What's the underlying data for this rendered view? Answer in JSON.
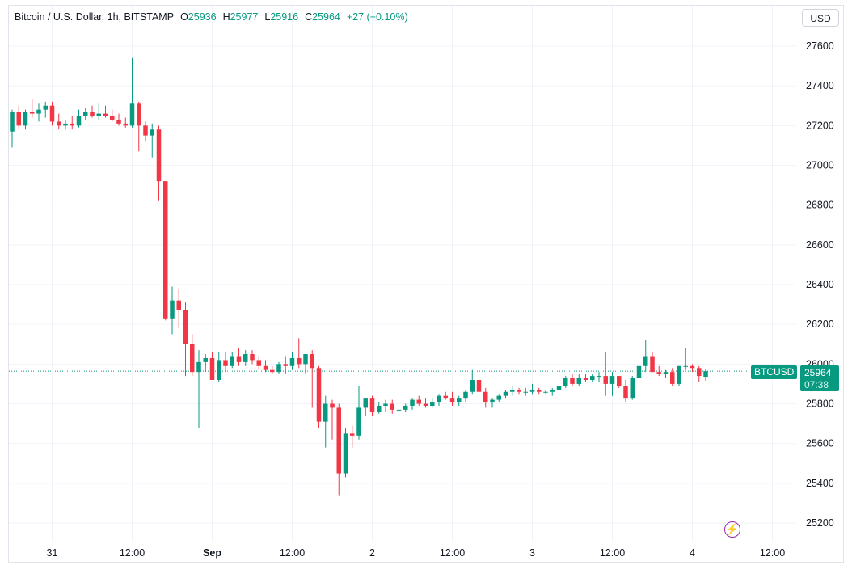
{
  "header": {
    "symbol_title": "Bitcoin / U.S. Dollar, 1h, BITSTAMP",
    "o_label": "O",
    "o_value": "25936",
    "h_label": "H",
    "h_value": "25977",
    "l_label": "L",
    "l_value": "25916",
    "c_label": "C",
    "c_value": "25964",
    "change": "+27 (+0.10%)"
  },
  "currency_button": "USD",
  "symbol_label": "BTCUSD",
  "price_label": {
    "price": "25964",
    "countdown": "07:38"
  },
  "flash_icon": "lightning-icon",
  "colors": {
    "up": "#089981",
    "down": "#f23645",
    "grid": "#f0f3fa",
    "text": "#131722"
  },
  "chart_data": {
    "type": "candlestick",
    "symbol": "BTCUSD",
    "interval": "1h",
    "exchange": "BITSTAMP",
    "y_ticks": [
      25200,
      25400,
      25600,
      25800,
      26000,
      26200,
      26400,
      26600,
      26800,
      27000,
      27200,
      27400,
      27600
    ],
    "ylim": [
      25150,
      27670
    ],
    "x_ticks": [
      {
        "label": "31",
        "index": 6,
        "bold": false
      },
      {
        "label": "12:00",
        "index": 18,
        "bold": false
      },
      {
        "label": "Sep",
        "index": 30,
        "bold": true
      },
      {
        "label": "12:00",
        "index": 42,
        "bold": false
      },
      {
        "label": "2",
        "index": 54,
        "bold": false
      },
      {
        "label": "12:00",
        "index": 66,
        "bold": false
      },
      {
        "label": "3",
        "index": 78,
        "bold": false
      },
      {
        "label": "12:00",
        "index": 90,
        "bold": false
      },
      {
        "label": "4",
        "index": 102,
        "bold": false
      },
      {
        "label": "12:00",
        "index": 114,
        "bold": false
      }
    ],
    "last_price": 25964,
    "candles": [
      [
        27170,
        27280,
        27090,
        27270
      ],
      [
        27270,
        27300,
        27180,
        27200
      ],
      [
        27200,
        27280,
        27180,
        27270
      ],
      [
        27270,
        27330,
        27240,
        27260
      ],
      [
        27260,
        27310,
        27220,
        27280
      ],
      [
        27280,
        27320,
        27240,
        27300
      ],
      [
        27300,
        27320,
        27200,
        27220
      ],
      [
        27220,
        27260,
        27180,
        27200
      ],
      [
        27200,
        27230,
        27180,
        27210
      ],
      [
        27210,
        27250,
        27180,
        27200
      ],
      [
        27200,
        27280,
        27190,
        27250
      ],
      [
        27250,
        27290,
        27230,
        27270
      ],
      [
        27270,
        27300,
        27240,
        27250
      ],
      [
        27250,
        27310,
        27230,
        27260
      ],
      [
        27260,
        27300,
        27240,
        27250
      ],
      [
        27250,
        27280,
        27220,
        27230
      ],
      [
        27230,
        27260,
        27200,
        27210
      ],
      [
        27210,
        27240,
        27190,
        27200
      ],
      [
        27200,
        27540,
        27190,
        27310
      ],
      [
        27310,
        27320,
        27070,
        27200
      ],
      [
        27200,
        27220,
        27120,
        27150
      ],
      [
        27150,
        27210,
        27040,
        27180
      ],
      [
        27180,
        27200,
        26820,
        26920
      ],
      [
        26920,
        26920,
        26220,
        26230
      ],
      [
        26230,
        26390,
        26150,
        26320
      ],
      [
        26320,
        26380,
        26180,
        26270
      ],
      [
        26270,
        26310,
        25940,
        26100
      ],
      [
        26100,
        26150,
        25940,
        25960
      ],
      [
        25960,
        26070,
        25680,
        26010
      ],
      [
        26010,
        26050,
        25960,
        26030
      ],
      [
        26030,
        26060,
        25920,
        25920
      ],
      [
        25920,
        26060,
        25910,
        26020
      ],
      [
        26020,
        26060,
        25960,
        25990
      ],
      [
        25990,
        26060,
        25980,
        26040
      ],
      [
        26040,
        26080,
        25990,
        26010
      ],
      [
        26010,
        26070,
        25990,
        26050
      ],
      [
        26050,
        26070,
        26000,
        26020
      ],
      [
        26020,
        26040,
        25970,
        25990
      ],
      [
        25990,
        26020,
        25960,
        25970
      ],
      [
        25970,
        25990,
        25950,
        25960
      ],
      [
        25960,
        26010,
        25950,
        26000
      ],
      [
        26000,
        26040,
        25950,
        25990
      ],
      [
        25990,
        26060,
        25970,
        26030
      ],
      [
        26030,
        26130,
        25980,
        26000
      ],
      [
        26000,
        26050,
        25950,
        26050
      ],
      [
        26050,
        26070,
        25780,
        25980
      ],
      [
        25980,
        25990,
        25680,
        25710
      ],
      [
        25710,
        25840,
        25580,
        25800
      ],
      [
        25800,
        25820,
        25620,
        25780
      ],
      [
        25780,
        25800,
        25340,
        25450
      ],
      [
        25450,
        25680,
        25430,
        25650
      ],
      [
        25650,
        25690,
        25580,
        25640
      ],
      [
        25640,
        25890,
        25620,
        25780
      ],
      [
        25780,
        25830,
        25740,
        25830
      ],
      [
        25830,
        25840,
        25740,
        25760
      ],
      [
        25760,
        25810,
        25750,
        25790
      ],
      [
        25790,
        25820,
        25760,
        25800
      ],
      [
        25800,
        25820,
        25750,
        25770
      ],
      [
        25770,
        25810,
        25750,
        25770
      ],
      [
        25770,
        25800,
        25760,
        25790
      ],
      [
        25790,
        25830,
        25770,
        25820
      ],
      [
        25820,
        25840,
        25790,
        25800
      ],
      [
        25800,
        25830,
        25780,
        25790
      ],
      [
        25790,
        25830,
        25780,
        25810
      ],
      [
        25810,
        25850,
        25790,
        25840
      ],
      [
        25840,
        25860,
        25820,
        25830
      ],
      [
        25830,
        25860,
        25790,
        25810
      ],
      [
        25810,
        25840,
        25790,
        25830
      ],
      [
        25830,
        25870,
        25810,
        25860
      ],
      [
        25860,
        25970,
        25850,
        25920
      ],
      [
        25920,
        25940,
        25860,
        25860
      ],
      [
        25860,
        25880,
        25780,
        25810
      ],
      [
        25810,
        25830,
        25780,
        25820
      ],
      [
        25820,
        25850,
        25810,
        25840
      ],
      [
        25840,
        25870,
        25830,
        25860
      ],
      [
        25860,
        25890,
        25840,
        25870
      ],
      [
        25870,
        25880,
        25850,
        25860
      ],
      [
        25860,
        25880,
        25840,
        25860
      ],
      [
        25860,
        25900,
        25850,
        25870
      ],
      [
        25870,
        25880,
        25850,
        25860
      ],
      [
        25860,
        25870,
        25850,
        25860
      ],
      [
        25860,
        25880,
        25840,
        25870
      ],
      [
        25870,
        25900,
        25860,
        25890
      ],
      [
        25890,
        25940,
        25880,
        25930
      ],
      [
        25930,
        25950,
        25890,
        25900
      ],
      [
        25900,
        25950,
        25890,
        25930
      ],
      [
        25930,
        25950,
        25910,
        25920
      ],
      [
        25920,
        25950,
        25910,
        25940
      ],
      [
        25940,
        25960,
        25910,
        25940
      ],
      [
        25940,
        26060,
        25840,
        25900
      ],
      [
        25900,
        25960,
        25840,
        25940
      ],
      [
        25940,
        25940,
        25880,
        25890
      ],
      [
        25890,
        25920,
        25810,
        25830
      ],
      [
        25830,
        25940,
        25820,
        25930
      ],
      [
        25930,
        26040,
        25920,
        25990
      ],
      [
        25990,
        26120,
        25960,
        26040
      ],
      [
        26040,
        26060,
        25960,
        25960
      ],
      [
        25960,
        25990,
        25940,
        25950
      ],
      [
        25950,
        25970,
        25930,
        25960
      ],
      [
        25960,
        25980,
        25890,
        25900
      ],
      [
        25900,
        25990,
        25890,
        25990
      ],
      [
        25990,
        26080,
        25970,
        25990
      ],
      [
        25990,
        26000,
        25960,
        25980
      ],
      [
        25980,
        25990,
        25910,
        25940
      ],
      [
        25936,
        25977,
        25916,
        25964
      ]
    ]
  }
}
